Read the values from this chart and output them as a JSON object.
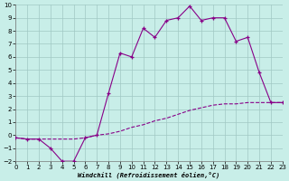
{
  "xlabel": "Windchill (Refroidissement éolien,°C)",
  "background_color": "#c8eee8",
  "line_color": "#880088",
  "x_upper": [
    0,
    1,
    2,
    3,
    4,
    5,
    6,
    7,
    8,
    9,
    10,
    11,
    12,
    13,
    14,
    15,
    16,
    17,
    18,
    19,
    20,
    21,
    22,
    23
  ],
  "y_upper": [
    -0.2,
    -0.3,
    -0.3,
    -1.0,
    -2.0,
    -2.0,
    -0.2,
    0.0,
    3.2,
    6.3,
    6.0,
    8.2,
    7.5,
    8.8,
    9.0,
    9.9,
    8.8,
    9.0,
    9.0,
    7.2,
    7.5,
    4.8,
    2.5,
    2.5
  ],
  "x_lower": [
    0,
    1,
    2,
    3,
    4,
    5,
    6,
    7,
    8,
    9,
    10,
    11,
    12,
    13,
    14,
    15,
    16,
    17,
    18,
    19,
    20,
    21,
    22,
    23
  ],
  "y_lower": [
    -0.2,
    -0.3,
    -0.3,
    -0.3,
    -0.3,
    -0.3,
    -0.2,
    0.0,
    0.1,
    0.3,
    0.6,
    0.8,
    1.1,
    1.3,
    1.6,
    1.9,
    2.1,
    2.3,
    2.4,
    2.4,
    2.5,
    2.5,
    2.5,
    2.5
  ],
  "ylim": [
    -2,
    10
  ],
  "xlim": [
    0,
    23
  ],
  "yticks": [
    -2,
    -1,
    0,
    1,
    2,
    3,
    4,
    5,
    6,
    7,
    8,
    9,
    10
  ],
  "xticks": [
    0,
    1,
    2,
    3,
    4,
    5,
    6,
    7,
    8,
    9,
    10,
    11,
    12,
    13,
    14,
    15,
    16,
    17,
    18,
    19,
    20,
    21,
    22,
    23
  ],
  "marker": "+",
  "linewidth": 0.8,
  "markersize": 3.5,
  "grid_color": "#a0c8c4",
  "label_fontsize": 5.0,
  "tick_fontsize": 5.0
}
